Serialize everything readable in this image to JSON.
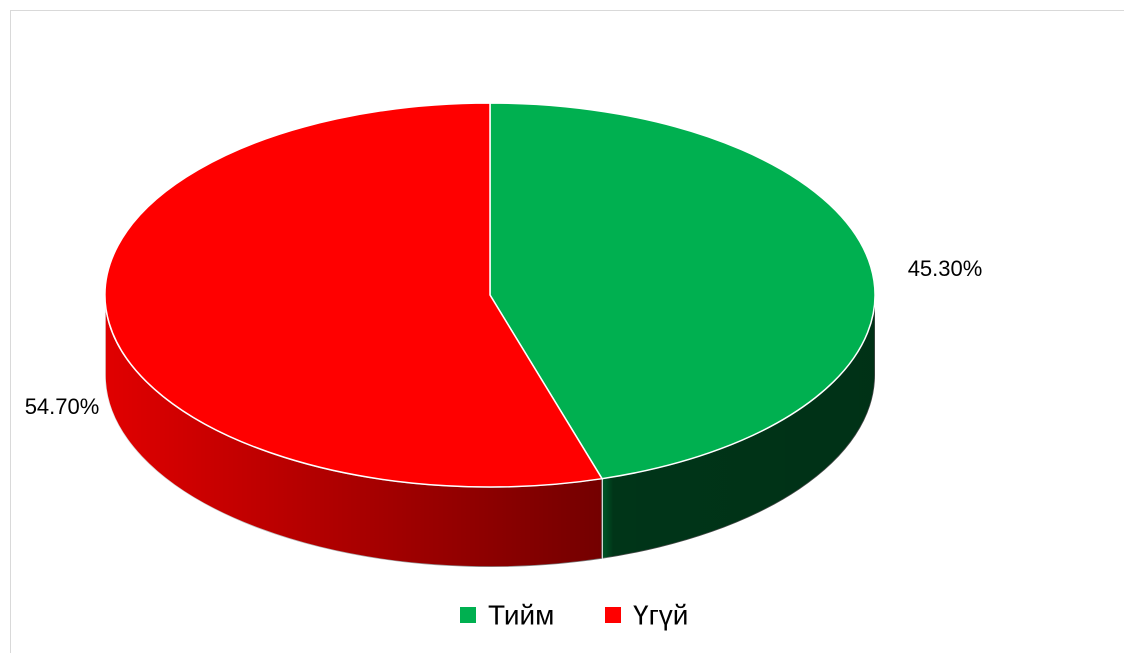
{
  "chart_data": {
    "type": "pie",
    "categories": [
      "Тийм",
      "Үгүй"
    ],
    "values": [
      45.3,
      54.7
    ],
    "value_labels": [
      "45.30%",
      "54.70%"
    ],
    "colors": [
      "#00b050",
      "#ff0000"
    ],
    "legend": "bottom"
  }
}
